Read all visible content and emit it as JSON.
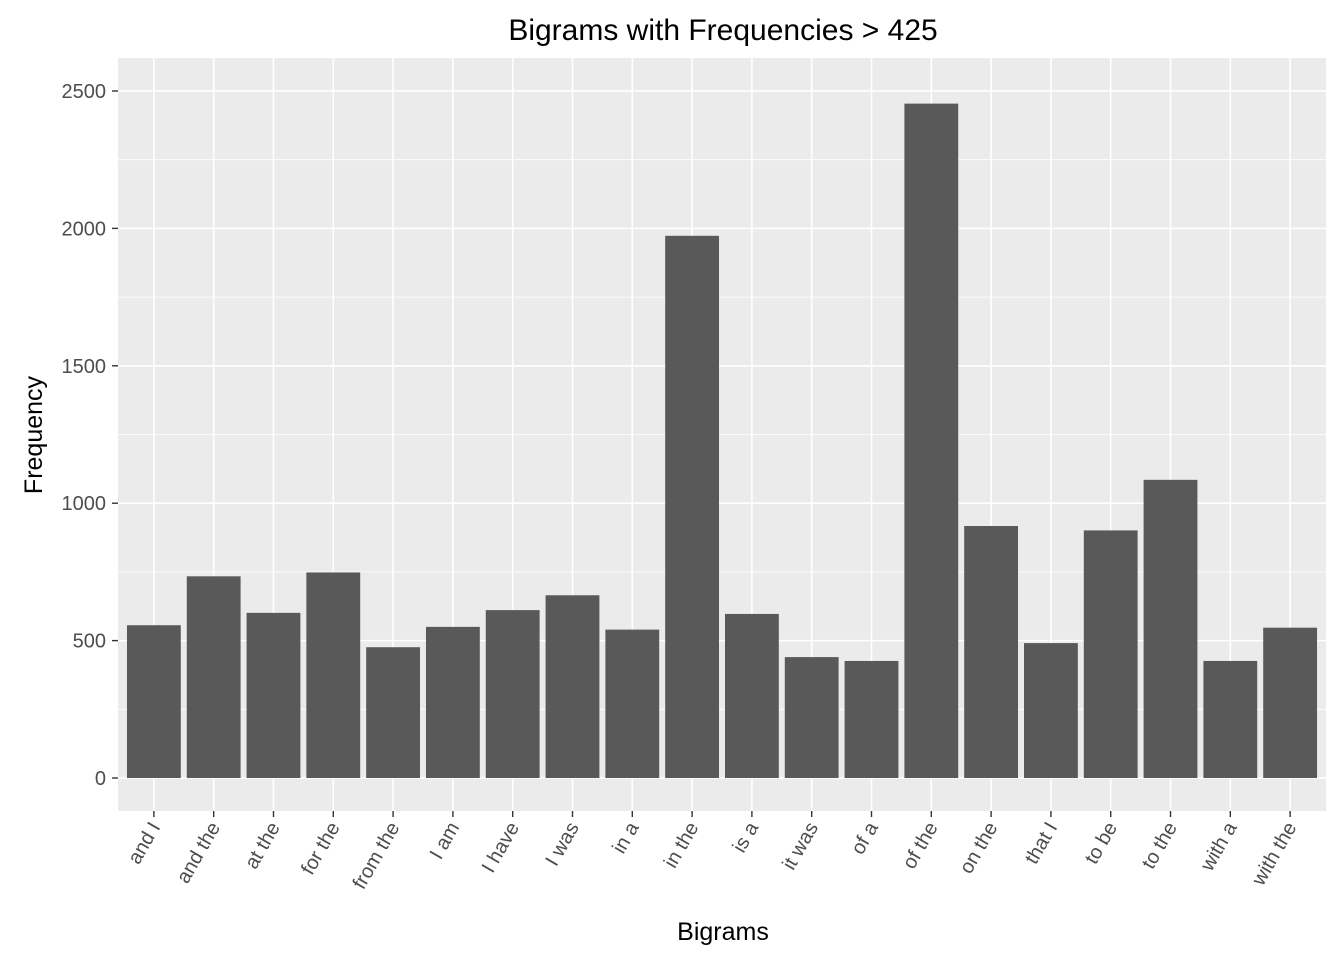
{
  "chart_data": {
    "type": "bar",
    "title": "Bigrams with Frequencies > 425",
    "xlabel": "Bigrams",
    "ylabel": "Frequency",
    "categories": [
      "and I",
      "and the",
      "at the",
      "for the",
      "from the",
      "I am",
      "I have",
      "I was",
      "in a",
      "in the",
      "is a",
      "it was",
      "of a",
      "of the",
      "on the",
      "that I",
      "to be",
      "to the",
      "with a",
      "with the"
    ],
    "values": [
      556,
      734,
      601,
      748,
      476,
      550,
      611,
      665,
      540,
      1973,
      597,
      440,
      426,
      2454,
      917,
      491,
      901,
      1085,
      426,
      547
    ],
    "y_ticks": [
      "0",
      "500",
      "1000",
      "1500",
      "2000",
      "2500"
    ],
    "ylim": [
      -120,
      2620
    ],
    "grid": true,
    "legend": "none",
    "colors": {
      "panel": "#ebebeb",
      "bar": "#595959",
      "grid": "#ffffff",
      "tick_text": "#4d4d4d"
    }
  }
}
